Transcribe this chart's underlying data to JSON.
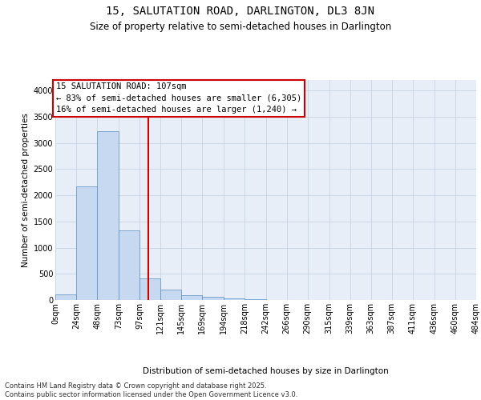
{
  "title1": "15, SALUTATION ROAD, DARLINGTON, DL3 8JN",
  "title2": "Size of property relative to semi-detached houses in Darlington",
  "xlabel": "Distribution of semi-detached houses by size in Darlington",
  "ylabel": "Number of semi-detached properties",
  "footer1": "Contains HM Land Registry data © Crown copyright and database right 2025.",
  "footer2": "Contains public sector information licensed under the Open Government Licence v3.0.",
  "annotation_title": "15 SALUTATION ROAD: 107sqm",
  "annotation_line1": "← 83% of semi-detached houses are smaller (6,305)",
  "annotation_line2": "16% of semi-detached houses are larger (1,240) →",
  "property_size_sqm": 107,
  "bin_edges": [
    0,
    24,
    48,
    73,
    97,
    121,
    145,
    169,
    194,
    218,
    242,
    266,
    290,
    315,
    339,
    363,
    387,
    411,
    436,
    460,
    484
  ],
  "bar_labels": [
    "0sqm",
    "24sqm",
    "48sqm",
    "73sqm",
    "97sqm",
    "121sqm",
    "145sqm",
    "169sqm",
    "194sqm",
    "218sqm",
    "242sqm",
    "266sqm",
    "290sqm",
    "315sqm",
    "339sqm",
    "363sqm",
    "387sqm",
    "411sqm",
    "436sqm",
    "460sqm",
    "484sqm"
  ],
  "counts": [
    110,
    2170,
    3230,
    1330,
    415,
    195,
    90,
    60,
    30,
    10,
    5,
    3,
    0,
    0,
    0,
    0,
    0,
    0,
    0,
    0
  ],
  "bar_color": "#c6d9f0",
  "bar_edge_color": "#5b8ec5",
  "vline_color": "#cc0000",
  "ylim_max": 4200,
  "yticks": [
    0,
    500,
    1000,
    1500,
    2000,
    2500,
    3000,
    3500,
    4000
  ],
  "grid_color": "#c8d4e3",
  "bg_color": "#e8eef7",
  "annotation_box_edge": "#cc0000",
  "title1_fontsize": 10,
  "title2_fontsize": 8.5,
  "annotation_fontsize": 7.5,
  "footer_fontsize": 6,
  "axis_label_fontsize": 7.5,
  "tick_label_fontsize": 7,
  "ylabel_fontsize": 7.5
}
